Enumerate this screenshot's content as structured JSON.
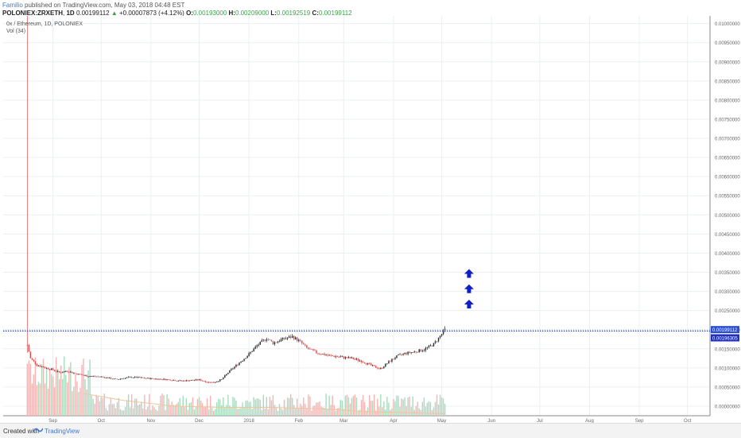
{
  "header": {
    "author": "Familio",
    "published": "published on TradingView.com, May 03, 2018 04:48 EST",
    "symbol": "POLONIEX:ZRXETH",
    "interval": "1D",
    "last": "0.00199112",
    "change_arrow": "▲",
    "change": "+0.00007873 (+4.12%)",
    "o_label": "O:",
    "o": "0.00193000",
    "h_label": "H:",
    "h": "0.00209000",
    "l_label": "L:",
    "l": "0.00192519",
    "c_label": "C:",
    "c": "0.00199112"
  },
  "legend": {
    "line1": "0x / Ethereum, 1D, POLONIEX",
    "line2": "Vol (34)"
  },
  "footer": {
    "created_with": "Created with",
    "brand": "TradingView"
  },
  "colors": {
    "candle_up": "#2a2a2a",
    "candle_down": "#e04848",
    "vol_up": "#a8dcc0",
    "vol_down": "#f5b5b5",
    "vol_ma": "#f2c49a",
    "price_line": "#1f3fd1",
    "arrows": "#1020c8",
    "grid": "#eceff2"
  },
  "chart_data": {
    "type": "candlestick",
    "y_axis_side": "right",
    "ylim": [
      -0.00025,
      0.0102
    ],
    "y_ticks": [
      "0.00000000",
      "0.00050000",
      "0.00100000",
      "0.00150000",
      "0.00200000",
      "0.00250000",
      "0.00300000",
      "0.00350000",
      "0.00400000",
      "0.00450000",
      "0.00500000",
      "0.00550000",
      "0.00600000",
      "0.00650000",
      "0.00700000",
      "0.00750000",
      "0.00800000",
      "0.00850000",
      "0.00900000",
      "0.00950000",
      "0.01000000"
    ],
    "y_tick_values": [
      0,
      0.0005,
      0.001,
      0.0015,
      0.002,
      0.0025,
      0.003,
      0.0035,
      0.004,
      0.0045,
      0.005,
      0.0055,
      0.006,
      0.0065,
      0.007,
      0.0075,
      0.008,
      0.0085,
      0.009,
      0.0095,
      0.01
    ],
    "x_range": [
      "2017-08-01",
      "2018-10-15"
    ],
    "x_ticks": [
      {
        "date": "2017-09-01",
        "label": "Sep"
      },
      {
        "date": "2017-10-01",
        "label": "Oct"
      },
      {
        "date": "2017-11-01",
        "label": "Nov"
      },
      {
        "date": "2017-12-01",
        "label": "Dec"
      },
      {
        "date": "2018-01-01",
        "label": "2018"
      },
      {
        "date": "2018-02-01",
        "label": "Feb"
      },
      {
        "date": "2018-03-01",
        "label": "Mar"
      },
      {
        "date": "2018-04-01",
        "label": "Apr"
      },
      {
        "date": "2018-05-01",
        "label": "May"
      },
      {
        "date": "2018-06-01",
        "label": "Jun"
      },
      {
        "date": "2018-07-01",
        "label": "Jul"
      },
      {
        "date": "2018-08-01",
        "label": "Aug"
      },
      {
        "date": "2018-09-01",
        "label": "Sep"
      },
      {
        "date": "2018-10-01",
        "label": "Oct"
      }
    ],
    "current_price": 0.00199112,
    "current_price_label": "0.00199112",
    "horizontal_line": 0.00196305,
    "horizontal_line_label": "0.00196305",
    "price_path": [
      {
        "date": "2017-08-16",
        "close": 0.0016,
        "high": 0.0102,
        "low": 0.0014
      },
      {
        "date": "2017-08-18",
        "close": 0.00125
      },
      {
        "date": "2017-08-22",
        "close": 0.00108
      },
      {
        "date": "2017-08-26",
        "close": 0.00102
      },
      {
        "date": "2017-09-01",
        "close": 0.00095
      },
      {
        "date": "2017-09-05",
        "close": 0.00088
      },
      {
        "date": "2017-09-10",
        "close": 0.00092
      },
      {
        "date": "2017-09-15",
        "close": 0.00085
      },
      {
        "date": "2017-09-22",
        "close": 0.00079
      },
      {
        "date": "2017-10-01",
        "close": 0.00077
      },
      {
        "date": "2017-10-10",
        "close": 0.0007
      },
      {
        "date": "2017-10-20",
        "close": 0.00076
      },
      {
        "date": "2017-11-01",
        "close": 0.00072
      },
      {
        "date": "2017-11-10",
        "close": 0.0007
      },
      {
        "date": "2017-11-20",
        "close": 0.00066
      },
      {
        "date": "2017-12-01",
        "close": 0.00069
      },
      {
        "date": "2017-12-06",
        "close": 0.00063
      },
      {
        "date": "2017-12-10",
        "close": 0.00062
      },
      {
        "date": "2017-12-15",
        "close": 0.0007
      },
      {
        "date": "2017-12-20",
        "close": 0.00092
      },
      {
        "date": "2017-12-25",
        "close": 0.0011
      },
      {
        "date": "2017-12-31",
        "close": 0.00132
      },
      {
        "date": "2018-01-06",
        "close": 0.00158
      },
      {
        "date": "2018-01-12",
        "close": 0.00178
      },
      {
        "date": "2018-01-16",
        "close": 0.00165
      },
      {
        "date": "2018-01-22",
        "close": 0.00175
      },
      {
        "date": "2018-01-28",
        "close": 0.00182
      },
      {
        "date": "2018-02-02",
        "close": 0.00168
      },
      {
        "date": "2018-02-06",
        "close": 0.00152
      },
      {
        "date": "2018-02-12",
        "close": 0.0014
      },
      {
        "date": "2018-02-20",
        "close": 0.00132
      },
      {
        "date": "2018-02-28",
        "close": 0.00128
      },
      {
        "date": "2018-03-06",
        "close": 0.00125
      },
      {
        "date": "2018-03-12",
        "close": 0.00118
      },
      {
        "date": "2018-03-20",
        "close": 0.00103
      },
      {
        "date": "2018-03-24",
        "close": 0.00098
      },
      {
        "date": "2018-03-28",
        "close": 0.00112
      },
      {
        "date": "2018-04-02",
        "close": 0.00128
      },
      {
        "date": "2018-04-08",
        "close": 0.00138
      },
      {
        "date": "2018-04-14",
        "close": 0.00142
      },
      {
        "date": "2018-04-20",
        "close": 0.00148
      },
      {
        "date": "2018-04-26",
        "close": 0.00162
      },
      {
        "date": "2018-05-03",
        "close": 0.00199,
        "high": 0.00209
      }
    ],
    "volume_ma_path": [
      {
        "date": "2017-09-20",
        "value": 0.00032
      },
      {
        "date": "2017-10-15",
        "value": 0.00022
      },
      {
        "date": "2017-11-15",
        "value": 0.00014
      },
      {
        "date": "2017-12-15",
        "value": 0.00012
      },
      {
        "date": "2018-01-15",
        "value": 0.00012
      },
      {
        "date": "2018-02-15",
        "value": 0.0001
      },
      {
        "date": "2018-03-15",
        "value": 6e-05
      },
      {
        "date": "2018-04-15",
        "value": 4e-05
      },
      {
        "date": "2018-05-03",
        "value": 3e-05
      }
    ],
    "annotations": [
      {
        "type": "arrow-up",
        "date": "2018-05-18",
        "y": 0.00348
      },
      {
        "type": "arrow-up",
        "date": "2018-05-18",
        "y": 0.00308
      },
      {
        "type": "arrow-up",
        "date": "2018-05-18",
        "y": 0.00268
      }
    ]
  }
}
